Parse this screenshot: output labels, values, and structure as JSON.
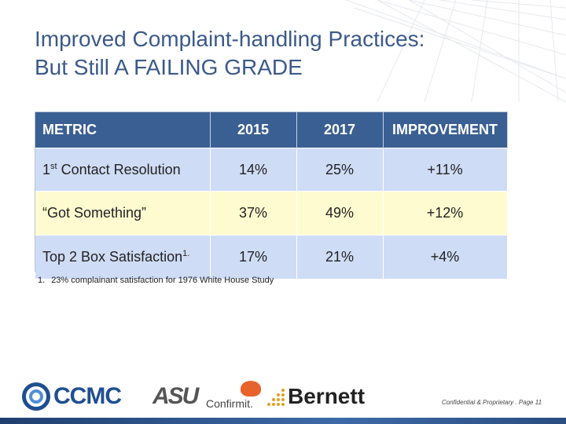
{
  "slide": {
    "title_line1": "Improved Complaint-handling Practices:",
    "title_line2": "But Still A FAILING GRADE"
  },
  "table": {
    "headers": [
      "METRIC",
      "2015",
      "2017",
      "IMPROVEMENT"
    ],
    "rows": [
      {
        "metric_pre": "1",
        "metric_sup": "st",
        "metric_post": " Contact Resolution",
        "y2015": "14%",
        "y2017": "25%",
        "improvement": "+11%"
      },
      {
        "metric": "“Got Something”",
        "y2015": "37%",
        "y2017": "49%",
        "improvement": "+12%"
      },
      {
        "metric": "Top 2 Box Satisfaction",
        "metric_sup": "1.",
        "y2015": "17%",
        "y2017": "21%",
        "improvement": "+4%"
      }
    ]
  },
  "footnote": {
    "number": "1.",
    "text": "23% complainant satisfaction for 1976 White House Study"
  },
  "logos": {
    "ccmc": "CCMC",
    "asu": "ASU",
    "confirmit": "Confirmit.",
    "bernett": "Bernett"
  },
  "footer": {
    "confidential": "Confidential & Proprietary . Page 11"
  },
  "colors": {
    "title": "#3b5a8a",
    "header_bg": "#3a5f93",
    "row_blue": "#cfdcf5",
    "row_yellow": "#fffbd0"
  }
}
